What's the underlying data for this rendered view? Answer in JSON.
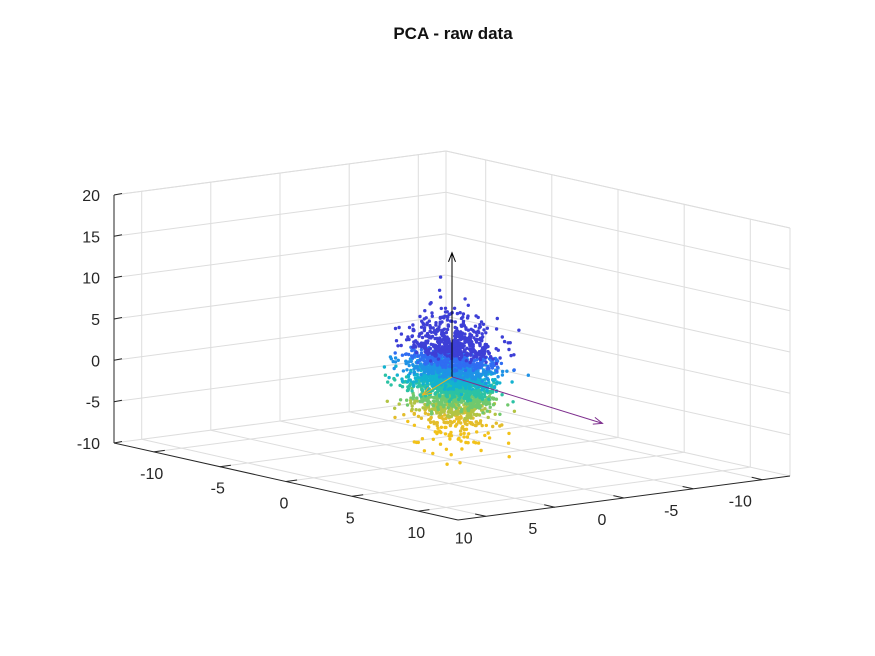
{
  "chart_data": {
    "type": "scatter3d",
    "title": "PCA - raw data",
    "xlabel": "",
    "ylabel": "",
    "zlabel": "",
    "xlim": [
      -13,
      13
    ],
    "ylim": [
      -12,
      12
    ],
    "zlim": [
      -10,
      20
    ],
    "x_ticks": [
      "-10",
      "-5",
      "0",
      "5",
      "10"
    ],
    "y_ticks": [
      "-10",
      "-5",
      "0",
      "5",
      "10"
    ],
    "z_ticks": [
      "-10",
      "-5",
      "0",
      "5",
      "10",
      "15",
      "20"
    ],
    "grid": true,
    "colormap": "parula (colored by z)",
    "point_cloud": {
      "count": 2600,
      "center": [
        0,
        0,
        0
      ],
      "std": [
        1.3,
        0.9,
        3.0
      ],
      "description_color_low": "#f2c21a",
      "description_color_high": "#3d3fd6"
    },
    "principal_axes": [
      {
        "from": [
          0,
          0,
          0
        ],
        "to": [
          12,
          0.6,
          -1.2
        ],
        "color": "#7e2f8e"
      },
      {
        "from": [
          0,
          0,
          0
        ],
        "to": [
          3,
          5,
          0
        ],
        "color": "#edb120"
      },
      {
        "from": [
          0,
          0,
          0
        ],
        "to": [
          0,
          0,
          15
        ],
        "color": "#000000"
      }
    ]
  }
}
